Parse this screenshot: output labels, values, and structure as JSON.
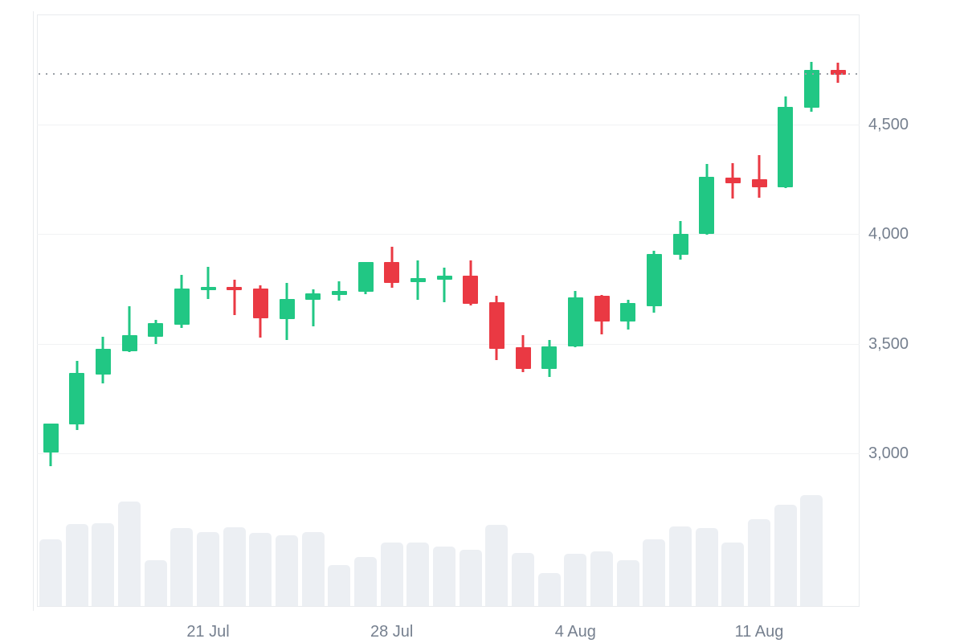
{
  "chart_data": {
    "type": "candlestick",
    "title": "",
    "xlabel": "",
    "ylabel": "",
    "grid": "horizontal-only",
    "legend": "none",
    "y_axis": {
      "side": "right",
      "ylim": [
        2300,
        5005
      ],
      "ticks": [
        {
          "label": "4,500",
          "value": 4500
        },
        {
          "label": "4,000",
          "value": 4000
        },
        {
          "label": "3,500",
          "value": 3500
        },
        {
          "label": "3,000",
          "value": 3000
        }
      ]
    },
    "x_axis": {
      "ticks": [
        {
          "label": "21 Jul",
          "candle_index": 6
        },
        {
          "label": "28 Jul",
          "candle_index": 13
        },
        {
          "label": "4 Aug",
          "candle_index": 20
        },
        {
          "label": "11 Aug",
          "candle_index": 27
        }
      ]
    },
    "current_price_line": {
      "value": 4728,
      "style": "dotted"
    },
    "colors": {
      "up": "#21c784",
      "down": "#ea3943",
      "volume_bar": "#eceff3",
      "grid_line": "#f1f2f4",
      "plot_border": "#e9ebee",
      "dotted_line": "#9aa0a6",
      "tick_text": "#76808f",
      "background": "#ffffff"
    },
    "candles": [
      {
        "date": "15 Jul",
        "open": 3005,
        "high": 3135,
        "low": 2940,
        "close": 3135,
        "volume_rel": 0.6
      },
      {
        "date": "16 Jul",
        "open": 3130,
        "high": 3420,
        "low": 3105,
        "close": 3365,
        "volume_rel": 0.74
      },
      {
        "date": "17 Jul",
        "open": 3360,
        "high": 3530,
        "low": 3320,
        "close": 3475,
        "volume_rel": 0.75
      },
      {
        "date": "18 Jul",
        "open": 3465,
        "high": 3670,
        "low": 3462,
        "close": 3540,
        "volume_rel": 0.94
      },
      {
        "date": "19 Jul",
        "open": 3530,
        "high": 3610,
        "low": 3500,
        "close": 3595,
        "volume_rel": 0.41
      },
      {
        "date": "20 Jul",
        "open": 3585,
        "high": 3815,
        "low": 3572,
        "close": 3750,
        "volume_rel": 0.7
      },
      {
        "date": "21 Jul",
        "open": 3745,
        "high": 3850,
        "low": 3702,
        "close": 3760,
        "volume_rel": 0.67
      },
      {
        "date": "22 Jul",
        "open": 3758,
        "high": 3790,
        "low": 3628,
        "close": 3742,
        "volume_rel": 0.71
      },
      {
        "date": "23 Jul",
        "open": 3750,
        "high": 3766,
        "low": 3528,
        "close": 3616,
        "volume_rel": 0.66
      },
      {
        "date": "24 Jul",
        "open": 3610,
        "high": 3775,
        "low": 3517,
        "close": 3703,
        "volume_rel": 0.64
      },
      {
        "date": "25 Jul",
        "open": 3700,
        "high": 3748,
        "low": 3578,
        "close": 3728,
        "volume_rel": 0.67
      },
      {
        "date": "26 Jul",
        "open": 3720,
        "high": 3785,
        "low": 3695,
        "close": 3740,
        "volume_rel": 0.37
      },
      {
        "date": "27 Jul",
        "open": 3737,
        "high": 3873,
        "low": 3726,
        "close": 3870,
        "volume_rel": 0.44
      },
      {
        "date": "28 Jul",
        "open": 3870,
        "high": 3942,
        "low": 3756,
        "close": 3775,
        "volume_rel": 0.57
      },
      {
        "date": "29 Jul",
        "open": 3780,
        "high": 3878,
        "low": 3698,
        "close": 3798,
        "volume_rel": 0.57
      },
      {
        "date": "30 Jul",
        "open": 3790,
        "high": 3845,
        "low": 3688,
        "close": 3808,
        "volume_rel": 0.54
      },
      {
        "date": "31 Jul",
        "open": 3808,
        "high": 3878,
        "low": 3674,
        "close": 3680,
        "volume_rel": 0.51
      },
      {
        "date": "1 Aug",
        "open": 3688,
        "high": 3718,
        "low": 3424,
        "close": 3475,
        "volume_rel": 0.73
      },
      {
        "date": "2 Aug",
        "open": 3482,
        "high": 3538,
        "low": 3368,
        "close": 3384,
        "volume_rel": 0.48
      },
      {
        "date": "3 Aug",
        "open": 3384,
        "high": 3515,
        "low": 3348,
        "close": 3488,
        "volume_rel": 0.3
      },
      {
        "date": "4 Aug",
        "open": 3486,
        "high": 3740,
        "low": 3482,
        "close": 3710,
        "volume_rel": 0.47
      },
      {
        "date": "5 Aug",
        "open": 3716,
        "high": 3720,
        "low": 3540,
        "close": 3600,
        "volume_rel": 0.49
      },
      {
        "date": "6 Aug",
        "open": 3600,
        "high": 3698,
        "low": 3562,
        "close": 3684,
        "volume_rel": 0.41
      },
      {
        "date": "7 Aug",
        "open": 3672,
        "high": 3925,
        "low": 3640,
        "close": 3910,
        "volume_rel": 0.6
      },
      {
        "date": "8 Aug",
        "open": 3904,
        "high": 4060,
        "low": 3882,
        "close": 4000,
        "volume_rel": 0.72
      },
      {
        "date": "9 Aug",
        "open": 4000,
        "high": 4320,
        "low": 3996,
        "close": 4258,
        "volume_rel": 0.7
      },
      {
        "date": "10 Aug",
        "open": 4258,
        "high": 4324,
        "low": 4160,
        "close": 4232,
        "volume_rel": 0.57
      },
      {
        "date": "11 Aug",
        "open": 4250,
        "high": 4358,
        "low": 4166,
        "close": 4212,
        "volume_rel": 0.78
      },
      {
        "date": "12 Aug",
        "open": 4214,
        "high": 4628,
        "low": 4210,
        "close": 4580,
        "volume_rel": 0.91
      },
      {
        "date": "13 Aug",
        "open": 4574,
        "high": 4785,
        "low": 4558,
        "close": 4748,
        "volume_rel": 1.0
      },
      {
        "date": "14 Aug",
        "open": 4746,
        "high": 4782,
        "low": 4690,
        "close": 4725,
        "volume_rel": 0
      }
    ]
  }
}
